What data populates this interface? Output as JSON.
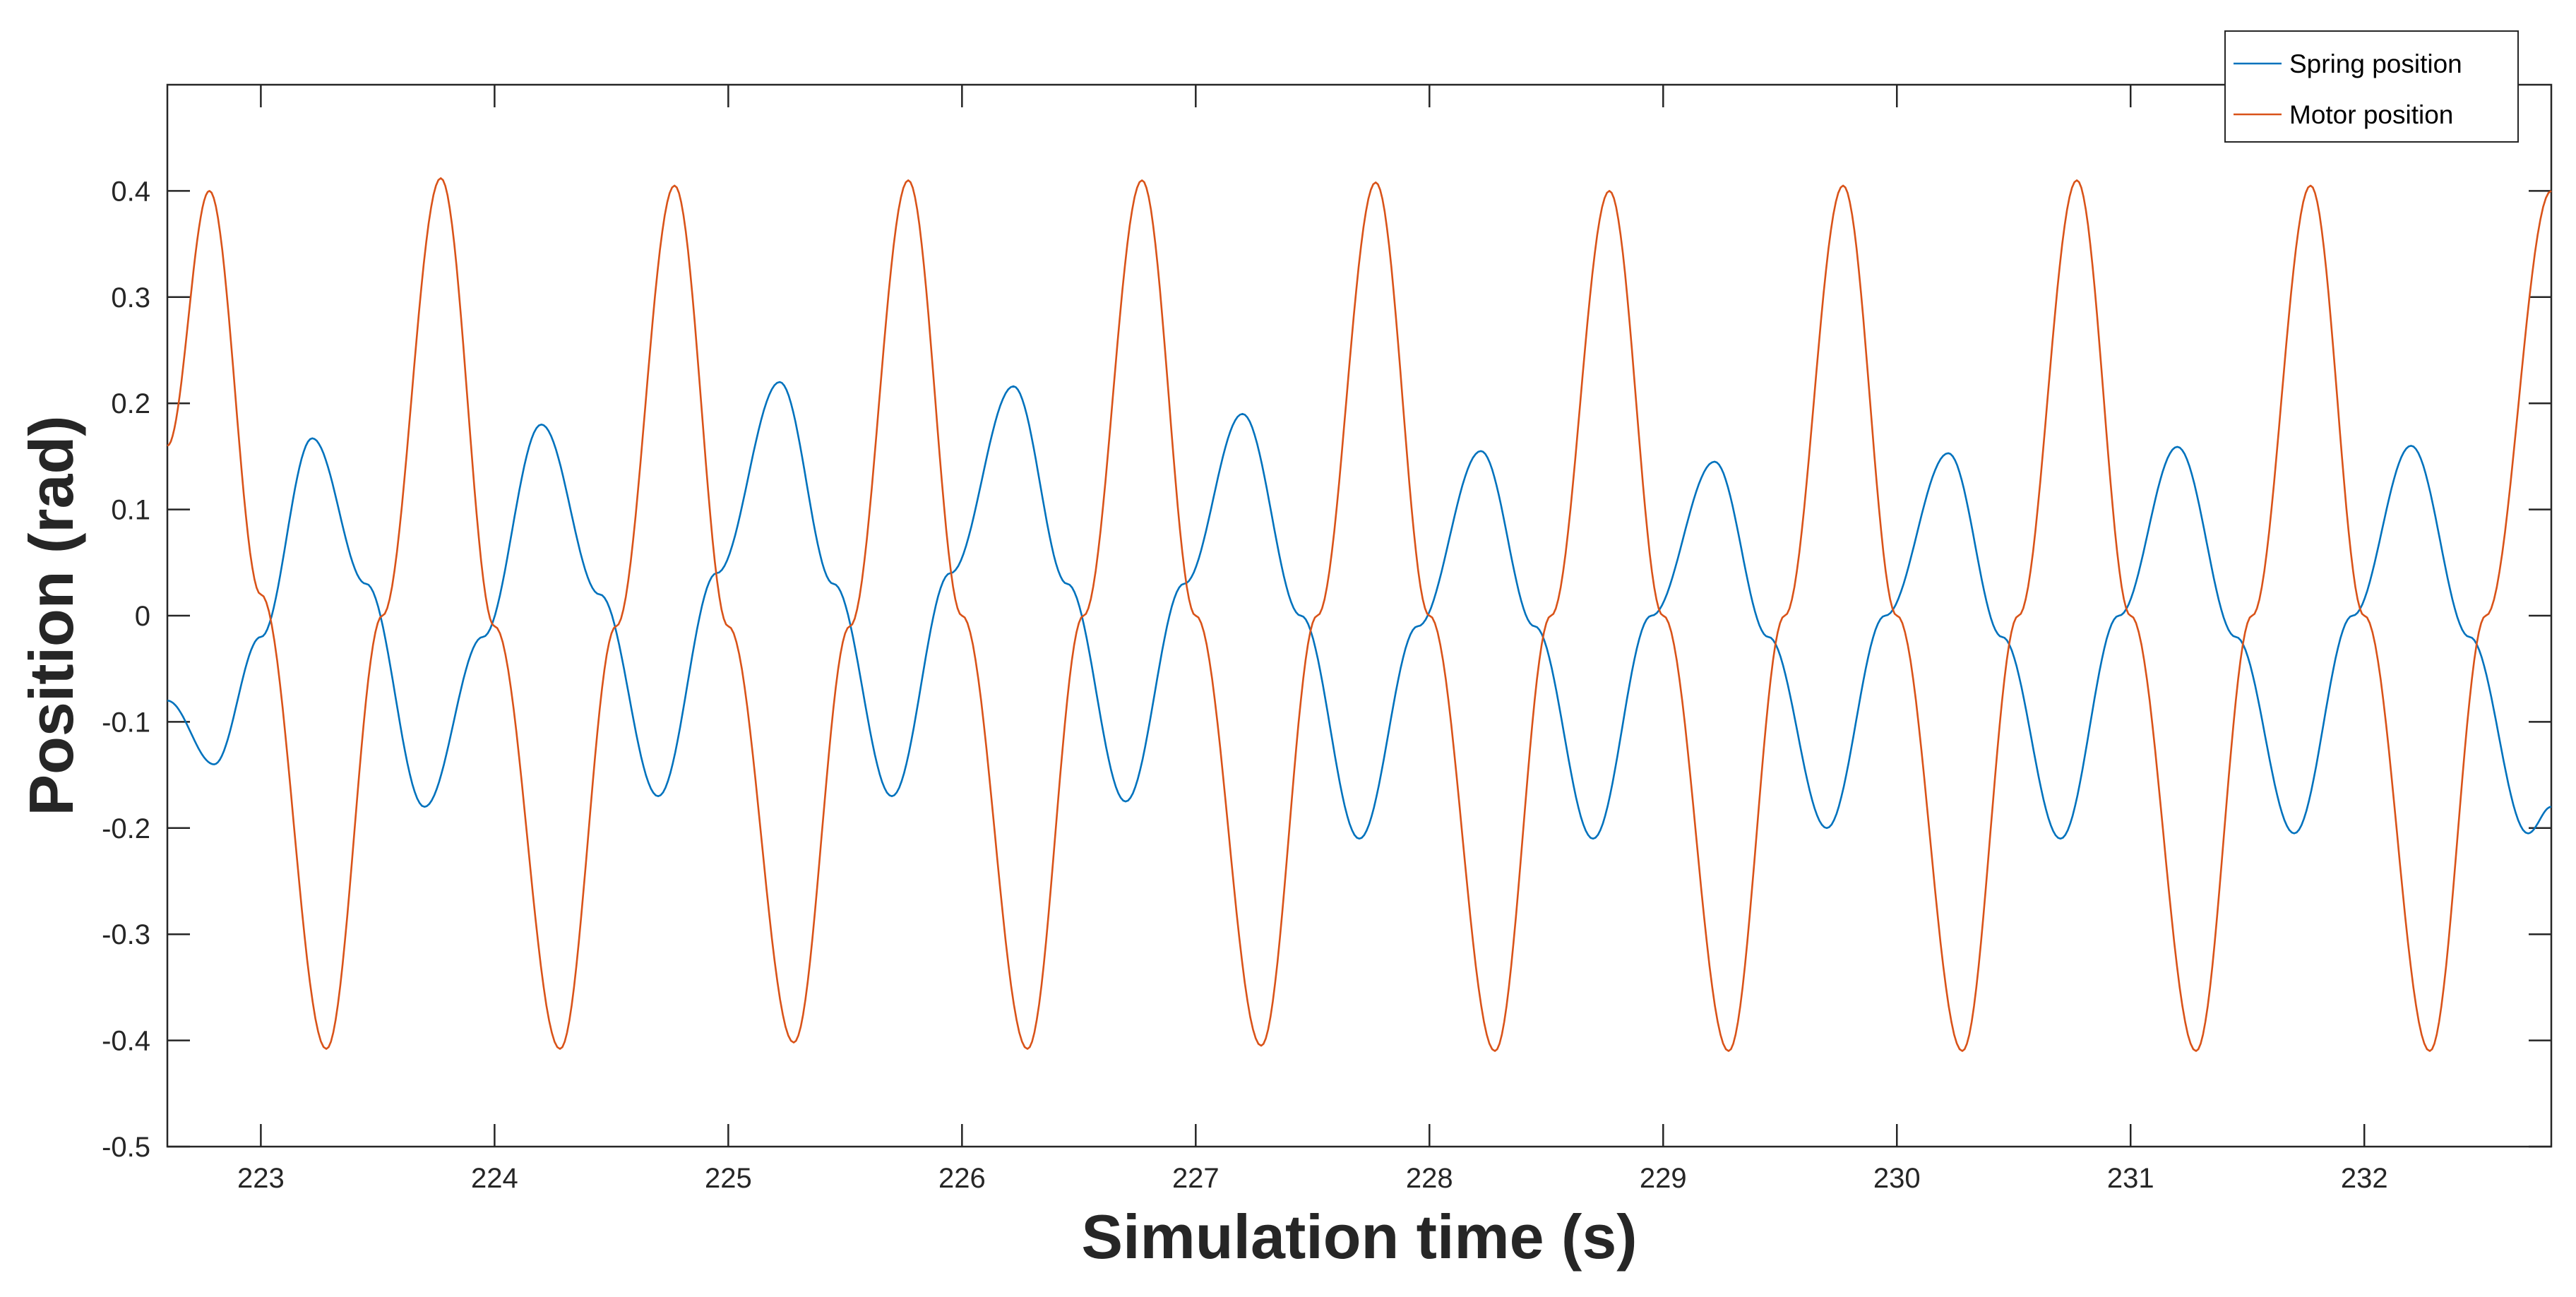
{
  "chart_data": {
    "type": "line",
    "title": "",
    "xlabel": "Simulation time (s)",
    "ylabel": "Position (rad)",
    "xlim": [
      222.6,
      232.8
    ],
    "ylim": [
      -0.5,
      0.5
    ],
    "x_ticks": [
      223,
      224,
      225,
      226,
      227,
      228,
      229,
      230,
      231,
      232
    ],
    "x_tick_labels": [
      "223",
      "224",
      "225",
      "226",
      "227",
      "228",
      "229",
      "230",
      "231",
      "232"
    ],
    "y_ticks": [
      -0.5,
      -0.4,
      -0.3,
      -0.2,
      -0.1,
      0,
      0.1,
      0.2,
      0.3,
      0.4
    ],
    "y_tick_labels": [
      "-0.5",
      "-0.4",
      "-0.3",
      "-0.2",
      "-0.1",
      "0",
      "0.1",
      "0.2",
      "0.3",
      "0.4"
    ],
    "grid": false,
    "legend_position": "top-right",
    "series": [
      {
        "name": "Spring position",
        "color": "#0072BD",
        "x": [
          222.6,
          222.8,
          223.0,
          223.22,
          223.45,
          223.7,
          223.95,
          224.2,
          224.45,
          224.7,
          224.95,
          225.22,
          225.45,
          225.7,
          225.95,
          226.22,
          226.45,
          226.7,
          226.95,
          227.2,
          227.45,
          227.7,
          227.95,
          228.22,
          228.45,
          228.7,
          228.95,
          229.22,
          229.45,
          229.7,
          229.95,
          230.22,
          230.45,
          230.7,
          230.95,
          231.2,
          231.45,
          231.7,
          231.95,
          232.2,
          232.45,
          232.7,
          232.8
        ],
        "y": [
          -0.08,
          -0.14,
          -0.02,
          0.167,
          0.03,
          -0.18,
          -0.02,
          0.18,
          0.02,
          -0.17,
          0.04,
          0.22,
          0.03,
          -0.17,
          0.04,
          0.216,
          0.03,
          -0.175,
          0.03,
          0.19,
          0.0,
          -0.21,
          -0.01,
          0.155,
          -0.01,
          -0.21,
          0.0,
          0.145,
          -0.02,
          -0.2,
          0.0,
          0.153,
          -0.02,
          -0.21,
          0.0,
          0.159,
          -0.02,
          -0.205,
          0.0,
          0.16,
          -0.02,
          -0.205,
          -0.18
        ]
      },
      {
        "name": "Motor position",
        "color": "#D95319",
        "x": [
          222.6,
          222.78,
          223.0,
          223.28,
          223.52,
          223.77,
          224.0,
          224.28,
          224.52,
          224.77,
          225.0,
          225.28,
          225.52,
          225.77,
          226.0,
          226.28,
          226.52,
          226.77,
          227.0,
          227.28,
          227.52,
          227.77,
          228.0,
          228.28,
          228.52,
          228.77,
          229.0,
          229.28,
          229.52,
          229.77,
          230.0,
          230.28,
          230.52,
          230.77,
          231.0,
          231.28,
          231.52,
          231.77,
          232.0,
          232.28,
          232.52,
          232.8
        ],
        "y": [
          0.16,
          0.4,
          0.02,
          -0.408,
          0.0,
          0.412,
          -0.01,
          -0.408,
          -0.01,
          0.405,
          -0.01,
          -0.402,
          -0.01,
          0.41,
          0.0,
          -0.408,
          0.0,
          0.41,
          0.0,
          -0.405,
          0.0,
          0.408,
          0.0,
          -0.41,
          0.0,
          0.4,
          0.0,
          -0.41,
          0.0,
          0.405,
          0.0,
          -0.41,
          0.0,
          0.41,
          0.0,
          -0.41,
          0.0,
          0.405,
          0.0,
          -0.41,
          0.0,
          0.4
        ]
      }
    ]
  }
}
